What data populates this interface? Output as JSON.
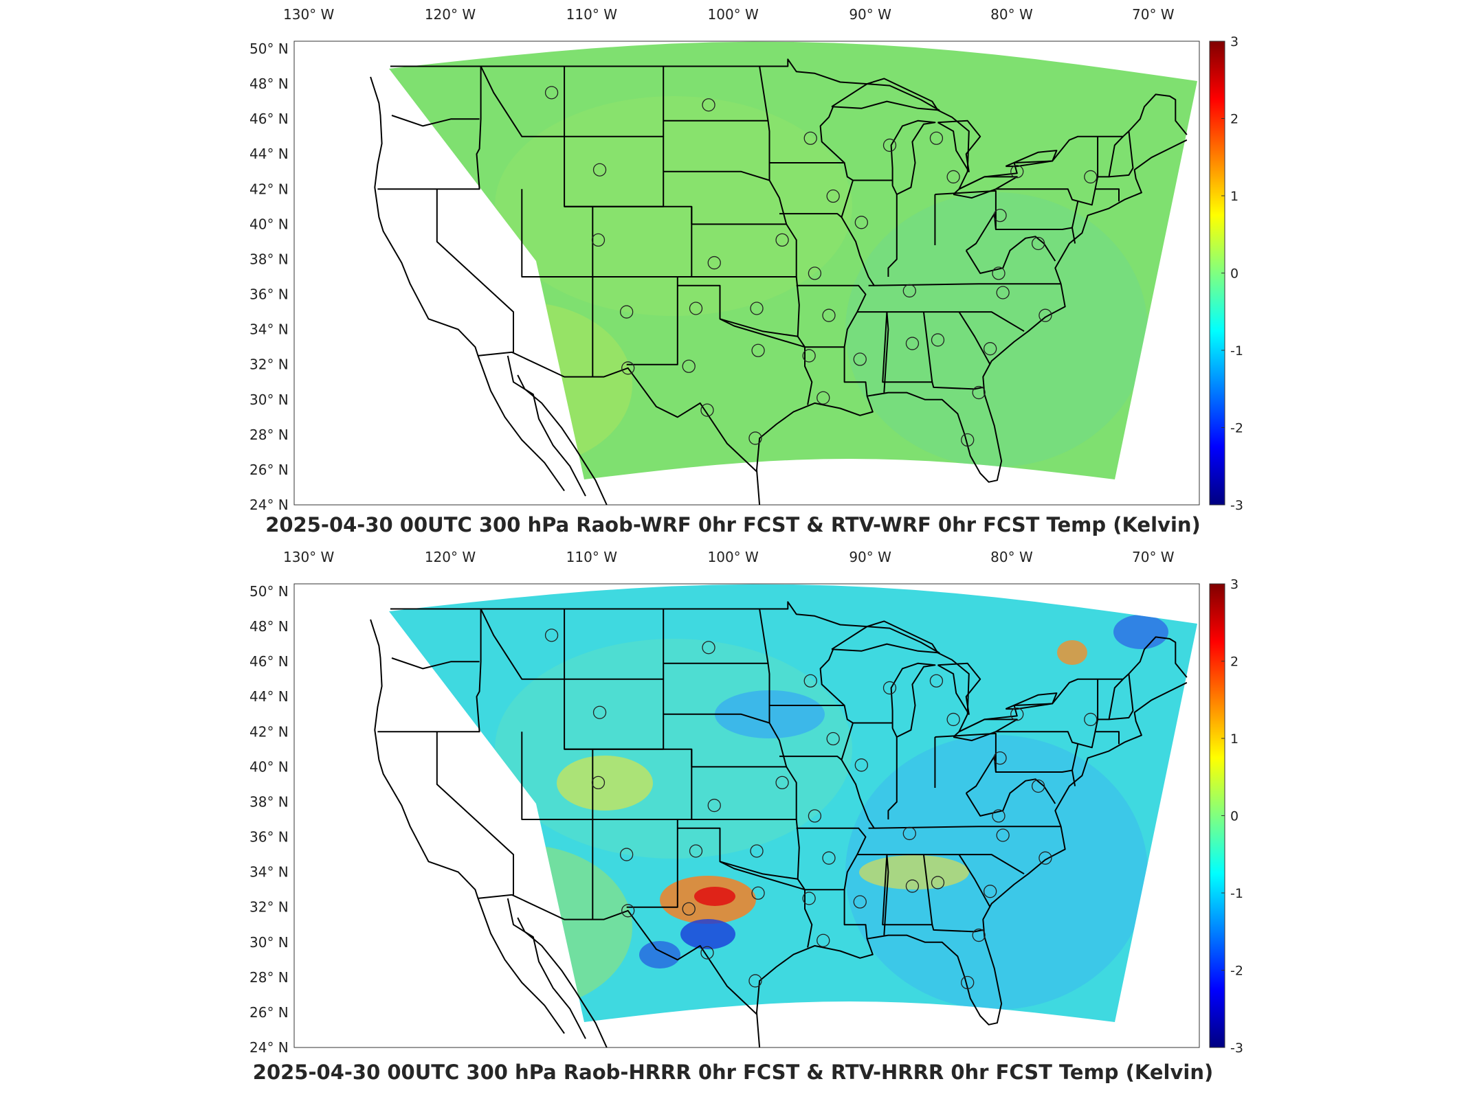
{
  "panels": [
    {
      "id": "wrf",
      "title": "2025-04-30 00UTC 300 hPa Raob-WRF 0hr FCST & RTV-WRF 0hr FCST Temp (Kelvin)",
      "field_colors": [
        "#7fe070",
        "#8ee36a",
        "#a9e65e",
        "#6fd98a"
      ]
    },
    {
      "id": "hrrr",
      "title": "2025-04-30 00UTC 300 hPa Raob-HRRR 0hr FCST & RTV-HRRR 0hr FCST Temp (Kelvin)",
      "field_colors": [
        "#3fd9e0",
        "#58e0c8",
        "#9be36b",
        "#3ab8f0"
      ]
    }
  ],
  "lon_labels": [
    "130° W",
    "120° W",
    "110° W",
    "100° W",
    "90° W",
    "80° W",
    "70° W"
  ],
  "lat_labels": [
    "50° N",
    "48° N",
    "46° N",
    "44° N",
    "42° N",
    "40° N",
    "38° N",
    "36° N",
    "34° N",
    "32° N",
    "30° N",
    "28° N",
    "26° N",
    "24° N"
  ],
  "colorbar": {
    "ticks": [
      "3",
      "2",
      "1",
      "0",
      "-1",
      "-2",
      "-3"
    ],
    "colors": [
      "#800000",
      "#ff0000",
      "#ff8000",
      "#ffff00",
      "#80ff80",
      "#00ffff",
      "#0080ff",
      "#0000ff",
      "#000080"
    ]
  },
  "stations": [
    {
      "lon": -111.9,
      "lat": 47.5
    },
    {
      "lon": -100.8,
      "lat": 46.8
    },
    {
      "lon": -93.6,
      "lat": 44.9
    },
    {
      "lon": -88.0,
      "lat": 44.5
    },
    {
      "lon": -84.7,
      "lat": 44.9
    },
    {
      "lon": -108.5,
      "lat": 43.1
    },
    {
      "lon": -92.0,
      "lat": 41.6
    },
    {
      "lon": -83.5,
      "lat": 42.7
    },
    {
      "lon": -79.0,
      "lat": 43.0
    },
    {
      "lon": -73.8,
      "lat": 42.7
    },
    {
      "lon": -108.6,
      "lat": 39.1
    },
    {
      "lon": -95.6,
      "lat": 39.1
    },
    {
      "lon": -90.0,
      "lat": 40.1
    },
    {
      "lon": -80.2,
      "lat": 40.5
    },
    {
      "lon": -77.5,
      "lat": 38.9
    },
    {
      "lon": -100.4,
      "lat": 37.8
    },
    {
      "lon": -93.3,
      "lat": 37.2
    },
    {
      "lon": -86.6,
      "lat": 36.2
    },
    {
      "lon": -80.3,
      "lat": 37.2
    },
    {
      "lon": -80.0,
      "lat": 36.1
    },
    {
      "lon": -106.6,
      "lat": 35.0
    },
    {
      "lon": -101.7,
      "lat": 35.2
    },
    {
      "lon": -97.4,
      "lat": 35.2
    },
    {
      "lon": -92.3,
      "lat": 34.8
    },
    {
      "lon": -77.0,
      "lat": 34.8
    },
    {
      "lon": -97.3,
      "lat": 32.8
    },
    {
      "lon": -93.7,
      "lat": 32.5
    },
    {
      "lon": -90.1,
      "lat": 32.3
    },
    {
      "lon": -86.4,
      "lat": 33.2
    },
    {
      "lon": -84.6,
      "lat": 33.4
    },
    {
      "lon": -80.9,
      "lat": 32.9
    },
    {
      "lon": -106.5,
      "lat": 31.8
    },
    {
      "lon": -102.2,
      "lat": 31.9
    },
    {
      "lon": -100.9,
      "lat": 29.4
    },
    {
      "lon": -97.5,
      "lat": 27.8
    },
    {
      "lon": -92.7,
      "lat": 30.1
    },
    {
      "lon": -81.7,
      "lat": 30.4
    },
    {
      "lon": -82.5,
      "lat": 27.7
    }
  ]
}
